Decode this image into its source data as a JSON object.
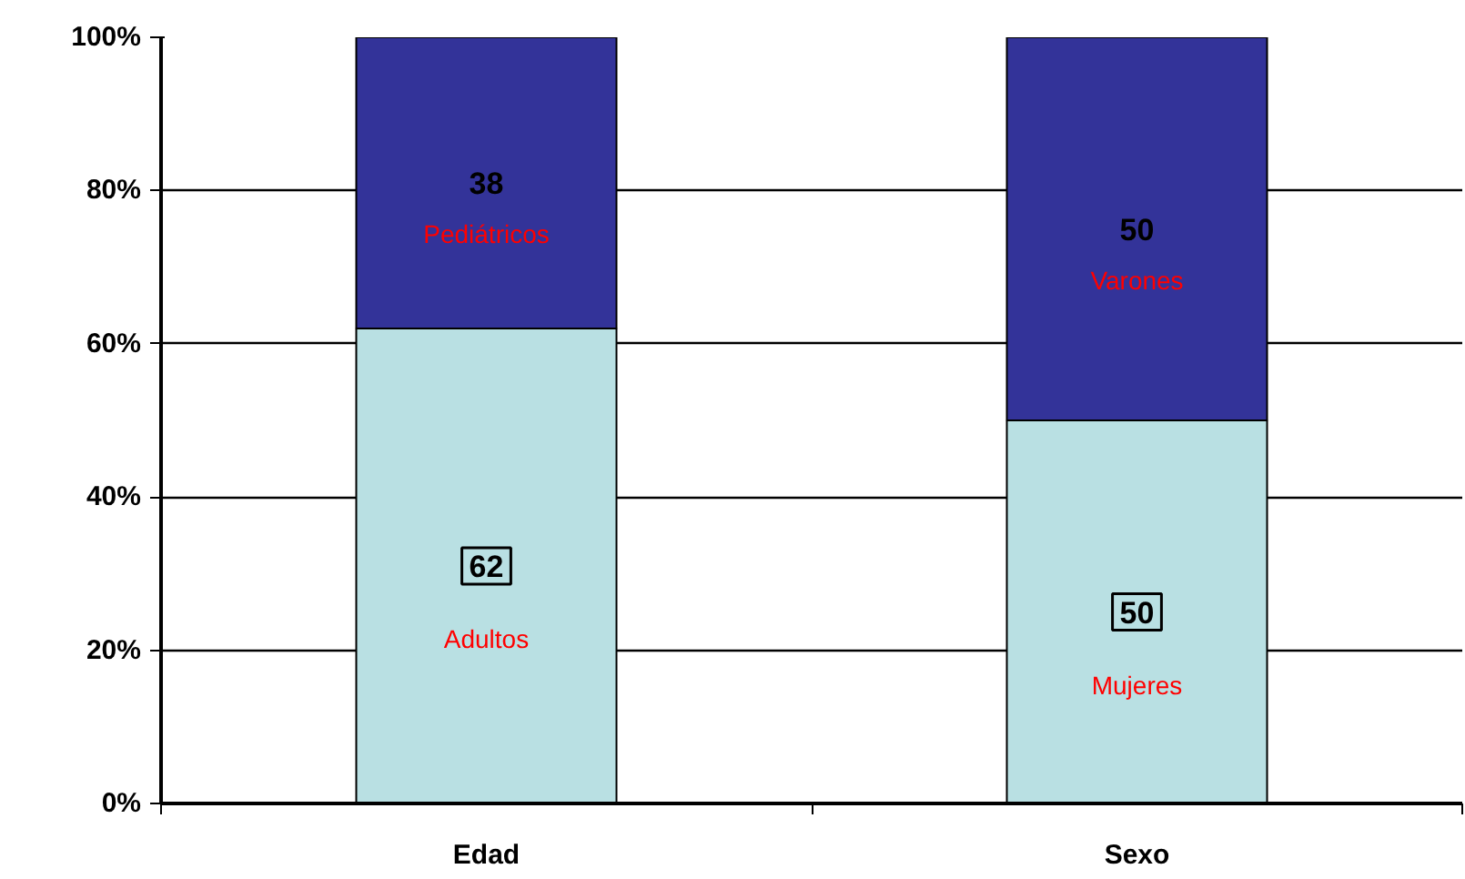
{
  "chart_data": {
    "type": "bar",
    "stacked": true,
    "categories": [
      "Edad",
      "Sexo"
    ],
    "series": [
      {
        "color": "#b9e0e3",
        "values": [
          62,
          50
        ]
      },
      {
        "color": "#333399",
        "values": [
          38,
          50
        ]
      }
    ],
    "data_labels": true,
    "ylim": [
      0,
      100
    ],
    "yticks": [
      {
        "value": 0,
        "label": "0%"
      },
      {
        "value": 20,
        "label": "20%"
      },
      {
        "value": 40,
        "label": "40%"
      },
      {
        "value": 60,
        "label": "60%"
      },
      {
        "value": 80,
        "label": "80%"
      },
      {
        "value": 100,
        "label": "100%"
      }
    ],
    "grid": "y",
    "annotations": [
      "Adultos",
      "Pediátricos",
      "Mujeres",
      "Varones"
    ]
  }
}
